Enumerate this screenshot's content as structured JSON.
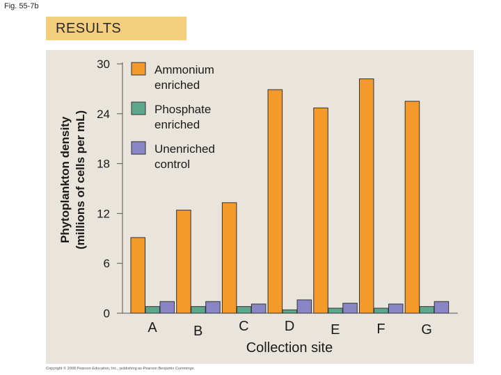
{
  "figure_label": "Fig. 55-7b",
  "results_label": "RESULTS",
  "copyright": "Copyright © 2008 Pearson Education, Inc., publishing as Pearson Benjamin Cummings.",
  "colors": {
    "results_box": "#f3ce7c",
    "panel": "#e9e4dc",
    "ammonium": "#f39a2b",
    "phosphate": "#5ba88c",
    "unenriched": "#8a86c6"
  },
  "chart_data": {
    "type": "bar",
    "title": "",
    "xlabel": "Collection site",
    "ylabel_line1": "Phytoplankton density",
    "ylabel_line2": "(millions of cells per mL)",
    "ylim": [
      0,
      30
    ],
    "yticks": [
      0,
      6,
      12,
      18,
      24,
      30
    ],
    "grid": false,
    "legend_placement": "top-left",
    "categories": [
      "A",
      "B",
      "C",
      "D",
      "E",
      "F",
      "G"
    ],
    "series": [
      {
        "name": "Ammonium enriched",
        "legend_line1": "Ammonium",
        "legend_line2": "enriched",
        "color": "#f39a2b",
        "values": [
          9.1,
          12.4,
          13.3,
          26.9,
          24.7,
          28.2,
          25.5
        ]
      },
      {
        "name": "Phosphate enriched",
        "legend_line1": "Phosphate",
        "legend_line2": "enriched",
        "color": "#5ba88c",
        "values": [
          0.8,
          0.8,
          0.8,
          0.4,
          0.6,
          0.6,
          0.8
        ]
      },
      {
        "name": "Unenriched control",
        "legend_line1": "Unenriched",
        "legend_line2": "control",
        "color": "#8a86c6",
        "values": [
          1.4,
          1.4,
          1.1,
          1.6,
          1.2,
          1.1,
          1.4
        ]
      }
    ]
  }
}
